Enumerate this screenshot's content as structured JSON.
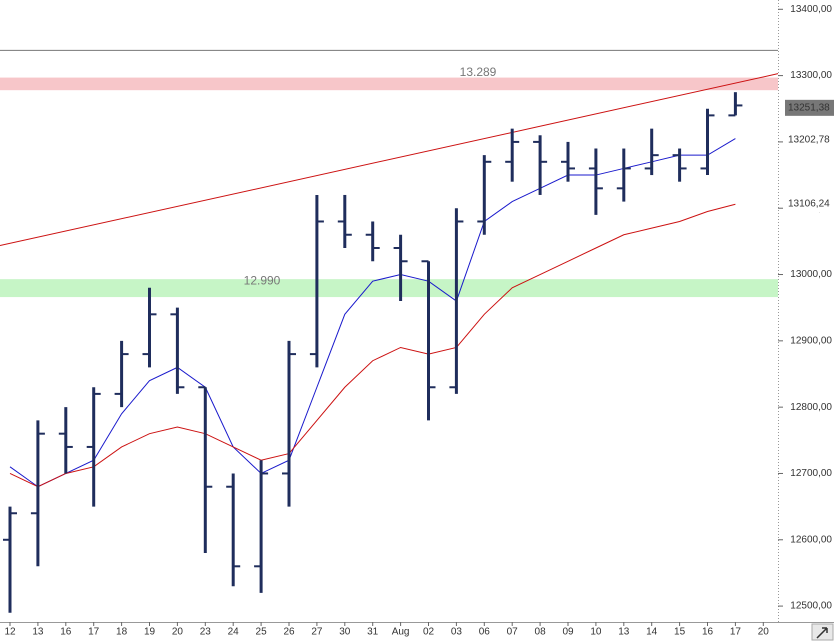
{
  "chart_data": {
    "type": "ohlc",
    "categories": [
      "12",
      "13",
      "16",
      "17",
      "18",
      "19",
      "20",
      "23",
      "24",
      "25",
      "26",
      "27",
      "30",
      "31",
      "Aug",
      "02",
      "03",
      "06",
      "07",
      "08",
      "09",
      "10",
      "13",
      "14",
      "15",
      "16",
      "17",
      "20"
    ],
    "ohlc": [
      [
        12600,
        12650,
        12490,
        12640
      ],
      [
        12640,
        12780,
        12560,
        12760
      ],
      [
        12760,
        12800,
        12700,
        12740
      ],
      [
        12740,
        12830,
        12650,
        12820
      ],
      [
        12820,
        12900,
        12800,
        12880
      ],
      [
        12880,
        12980,
        12860,
        12940
      ],
      [
        12940,
        12950,
        12820,
        12830
      ],
      [
        12830,
        12830,
        12580,
        12680
      ],
      [
        12680,
        12700,
        12530,
        12560
      ],
      [
        12560,
        12720,
        12520,
        12700
      ],
      [
        12700,
        12900,
        12650,
        12880
      ],
      [
        12880,
        13120,
        12860,
        13080
      ],
      [
        13080,
        13120,
        13040,
        13060
      ],
      [
        13060,
        13080,
        13020,
        13040
      ],
      [
        13040,
        13060,
        12960,
        13020
      ],
      [
        13020,
        13020,
        12780,
        12830
      ],
      [
        12830,
        13100,
        12820,
        13080
      ],
      [
        13080,
        13180,
        13060,
        13170
      ],
      [
        13170,
        13220,
        13140,
        13200
      ],
      [
        13200,
        13210,
        13120,
        13170
      ],
      [
        13170,
        13200,
        13140,
        13160
      ],
      [
        13160,
        13190,
        13090,
        13130
      ],
      [
        13130,
        13190,
        13110,
        13160
      ],
      [
        13160,
        13220,
        13150,
        13180
      ],
      [
        13180,
        13190,
        13140,
        13160
      ],
      [
        13160,
        13250,
        13150,
        13240
      ],
      [
        13240,
        13275,
        13240,
        13255
      ],
      null
    ],
    "color": "#1f2d5c",
    "last_price": {
      "value": 13251.38,
      "label": "13251,38"
    },
    "series": [
      {
        "color": "#1a1acc",
        "values": [
          12710,
          12680,
          12700,
          12720,
          12790,
          12840,
          12860,
          12830,
          12740,
          12700,
          12720,
          12830,
          12940,
          12990,
          13000,
          12990,
          12960,
          13080,
          13110,
          13130,
          13150,
          13150,
          13160,
          13170,
          13180,
          13180,
          13205,
          null
        ],
        "tag": {
          "value": 13202.78,
          "label": "13202,78"
        }
      },
      {
        "color": "#cc1111",
        "values": [
          12700,
          12680,
          12700,
          12710,
          12740,
          12760,
          12770,
          12760,
          12740,
          12720,
          12730,
          12780,
          12830,
          12870,
          12890,
          12880,
          12890,
          12940,
          12980,
          13000,
          13020,
          13040,
          13060,
          13070,
          13080,
          13095,
          13106,
          null
        ],
        "tag": {
          "value": 13106.24,
          "label": "13106,24"
        }
      }
    ],
    "trendline": {
      "color": "#cc1111",
      "values": [
        13047,
        13298
      ]
    },
    "hline": {
      "value": 13338,
      "color": "#777777"
    },
    "zones": [
      {
        "value": 13289,
        "label": "13.289",
        "low": 13278,
        "high": 13297,
        "color": "#f7c6c9"
      },
      {
        "value": 12990,
        "label": "12.990",
        "low": 12966,
        "high": 12993,
        "color": "#c6f5c6"
      }
    ],
    "ylim": [
      12476,
      13414
    ],
    "yticks": [
      {
        "value": 12500,
        "label": "12500,00"
      },
      {
        "value": 12600,
        "label": "12600,00"
      },
      {
        "value": 12700,
        "label": "12700,00"
      },
      {
        "value": 12800,
        "label": "12800,00"
      },
      {
        "value": 12900,
        "label": "12900,00"
      },
      {
        "value": 13000,
        "label": "13000,00"
      },
      {
        "value": 13100,
        "label": "13100,00"
      },
      {
        "value": 13200,
        "label": "13200,00"
      },
      {
        "value": 13300,
        "label": "13300,00"
      },
      {
        "value": 13400,
        "label": "13400,00"
      }
    ]
  }
}
